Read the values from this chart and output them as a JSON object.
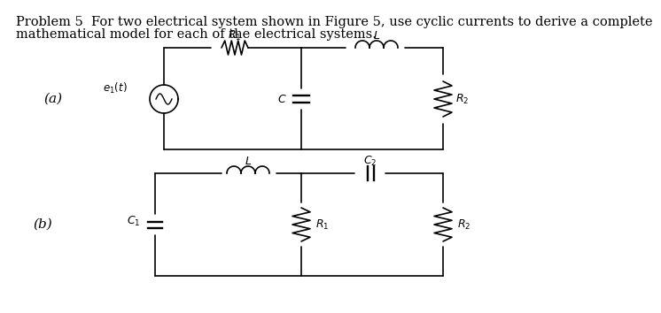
{
  "bg_color": "#ffffff",
  "text_color": "#000000",
  "line_width": 1.2,
  "title_line1": "Problem 5  For two electrical system shown in Figure 5, use cyclic currents to derive a complete",
  "title_line2": "mathematical model for each of the electrical systems.",
  "title_fontsize": 10.5,
  "circuit_a_label": "(a)",
  "circuit_b_label": "(b)"
}
